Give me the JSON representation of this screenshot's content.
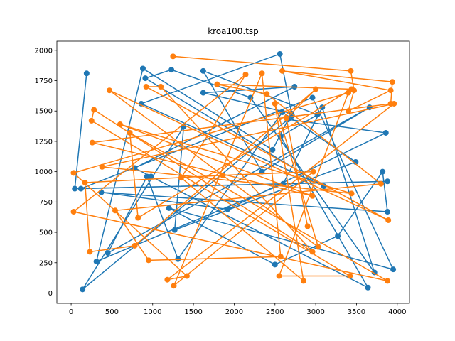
{
  "chart_data": {
    "type": "line",
    "title": "kroa100.tsp",
    "xlabel": "",
    "ylabel": "",
    "xlim": [
      -175,
      4150
    ],
    "ylim": [
      -85,
      2075
    ],
    "x_ticks": [
      0,
      500,
      1000,
      1500,
      2000,
      2500,
      3000,
      3500,
      4000
    ],
    "y_ticks": [
      0,
      250,
      500,
      750,
      1000,
      1250,
      1500,
      1750,
      2000
    ],
    "grid": false,
    "markers": "circle",
    "colors": [
      "#1f77b4",
      "#ff7f0e"
    ],
    "series": [
      {
        "color": "#1f77b4",
        "points": [
          [
            190,
            1810
          ],
          [
            45,
            860
          ],
          [
            3880,
            920
          ],
          [
            120,
            860
          ],
          [
            2960,
            1610
          ],
          [
            3950,
            195
          ],
          [
            1200,
            700
          ],
          [
            2500,
            235
          ],
          [
            3270,
            470
          ],
          [
            3820,
            1000
          ],
          [
            3880,
            670
          ],
          [
            370,
            830
          ],
          [
            1920,
            690
          ],
          [
            3860,
            1320
          ],
          [
            2660,
            1430
          ],
          [
            140,
            30
          ],
          [
            1380,
            1370
          ],
          [
            1270,
            520
          ],
          [
            3490,
            1080
          ],
          [
            2590,
            1490
          ],
          [
            1310,
            280
          ],
          [
            930,
            960
          ],
          [
            450,
            330
          ],
          [
            3660,
            1530
          ],
          [
            2340,
            1000
          ],
          [
            1620,
            1830
          ],
          [
            3020,
            1470
          ],
          [
            2570,
            1290
          ],
          [
            3640,
            45
          ],
          [
            980,
            960
          ],
          [
            780,
            1030
          ],
          [
            2740,
            1700
          ],
          [
            1620,
            1650
          ],
          [
            2700,
            1480
          ],
          [
            2470,
            1180
          ],
          [
            880,
            1850
          ],
          [
            310,
            260
          ],
          [
            2600,
            900
          ],
          [
            3080,
            1530
          ],
          [
            3720,
            170
          ],
          [
            2200,
            1610
          ],
          [
            1230,
            1840
          ],
          [
            910,
            1770
          ],
          [
            3100,
            880
          ],
          [
            860,
            1560
          ],
          [
            2560,
            1970
          ],
          [
            2710,
            1460
          ]
        ]
      },
      {
        "color": "#ff7f0e",
        "points": [
          [
            1250,
            1950
          ],
          [
            3430,
            1830
          ],
          [
            3470,
            1670
          ],
          [
            3400,
            1500
          ],
          [
            3920,
            1670
          ],
          [
            2590,
            1830
          ],
          [
            3940,
            1740
          ],
          [
            3920,
            1560
          ],
          [
            260,
            1240
          ],
          [
            2960,
            800
          ],
          [
            600,
            1390
          ],
          [
            3440,
            820
          ],
          [
            380,
            1040
          ],
          [
            3960,
            1560
          ],
          [
            1180,
            110
          ],
          [
            1420,
            140
          ],
          [
            30,
            990
          ],
          [
            3400,
            1650
          ],
          [
            2550,
            140
          ],
          [
            3420,
            140
          ],
          [
            250,
            1420
          ],
          [
            280,
            1510
          ],
          [
            2960,
            340
          ],
          [
            1100,
            1700
          ],
          [
            920,
            1700
          ],
          [
            3890,
            600
          ],
          [
            470,
            1670
          ],
          [
            3030,
            380
          ],
          [
            2500,
            1560
          ],
          [
            2850,
            100
          ],
          [
            1350,
            950
          ],
          [
            2140,
            1800
          ],
          [
            30,
            670
          ],
          [
            3880,
            100
          ],
          [
            720,
            1320
          ],
          [
            820,
            620
          ],
          [
            3440,
            1680
          ],
          [
            1790,
            1720
          ],
          [
            2400,
            1640
          ],
          [
            3800,
            900
          ],
          [
            540,
            680
          ],
          [
            950,
            270
          ],
          [
            2570,
            300
          ],
          [
            2340,
            1810
          ],
          [
            1260,
            60
          ],
          [
            2970,
            1000
          ],
          [
            1860,
            970
          ],
          [
            170,
            910
          ],
          [
            230,
            340
          ],
          [
            780,
            390
          ],
          [
            3000,
            1680
          ],
          [
            2640,
            1440
          ],
          [
            2900,
            550
          ]
        ]
      }
    ]
  }
}
